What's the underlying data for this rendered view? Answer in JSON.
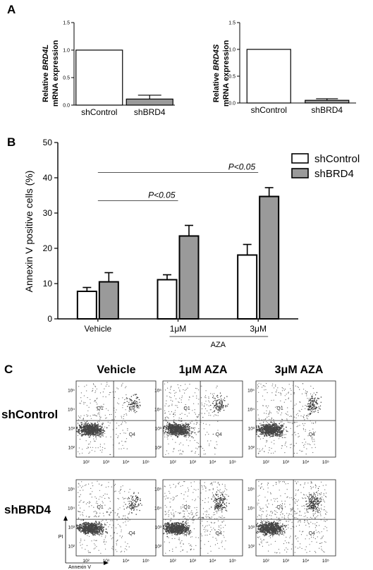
{
  "panels": {
    "A": "A",
    "B": "B",
    "C": "C"
  },
  "chart_data": [
    {
      "type": "bar",
      "panel": "A",
      "ylabel_prefix": "Relative ",
      "ylabel_gene": "BRD4L",
      "ylabel_line2": "mRNA expression",
      "categories": [
        "shControl",
        "shBRD4"
      ],
      "values": [
        1.0,
        0.11
      ],
      "errors": [
        0,
        0.07
      ],
      "ylim": [
        0,
        1.5
      ],
      "yticks": [
        "0.0",
        "0.5",
        "1.0",
        "1.5"
      ],
      "colors": [
        "#ffffff",
        "#9a9a9a"
      ]
    },
    {
      "type": "bar",
      "panel": "A",
      "ylabel_prefix": "Relative ",
      "ylabel_gene": "BRD4S",
      "ylabel_line2": "mRNA expression",
      "categories": [
        "shControl",
        "shBRD4"
      ],
      "values": [
        1.0,
        0.05
      ],
      "errors": [
        0,
        0.03
      ],
      "ylim": [
        0,
        1.5
      ],
      "yticks": [
        "0.0",
        "0.5",
        "1.0",
        "1.5"
      ],
      "colors": [
        "#ffffff",
        "#9a9a9a"
      ]
    },
    {
      "type": "bar",
      "panel": "B",
      "ylabel": "Annexin V positive cells (%)",
      "ylim": [
        0,
        50
      ],
      "yticks": [
        "0",
        "10",
        "20",
        "30",
        "40",
        "50"
      ],
      "categories": [
        "Vehicle",
        "1μM",
        "3μM"
      ],
      "group_label": "AZA",
      "series": [
        {
          "name": "shControl",
          "values": [
            7.8,
            11.1,
            18.1
          ],
          "errors": [
            1.1,
            1.4,
            3.0
          ],
          "color": "#ffffff"
        },
        {
          "name": "shBRD4",
          "values": [
            10.5,
            23.5,
            34.7
          ],
          "errors": [
            2.6,
            3.0,
            2.5
          ],
          "color": "#9a9a9a"
        }
      ],
      "annotations": [
        {
          "text": "P<0.05",
          "from": "Vehicle",
          "to": "1μM",
          "y": 33.5
        },
        {
          "text": "P<0.05",
          "from": "Vehicle",
          "to": "3μM",
          "y": 41.5
        }
      ],
      "legend": "top-right"
    },
    {
      "type": "scatter",
      "panel": "C",
      "column_titles": [
        "Vehicle",
        "1μM AZA",
        "3μM AZA"
      ],
      "row_titles": [
        "shControl",
        "shBRD4"
      ],
      "quadrants": [
        "Q1",
        "Q2",
        "Q3",
        "Q4"
      ],
      "x_axis_label": "Annexin V",
      "y_axis_label": "PI",
      "axis_scale": "log",
      "tick_labels": [
        "10²",
        "10³",
        "10⁴",
        "10⁵"
      ]
    }
  ]
}
